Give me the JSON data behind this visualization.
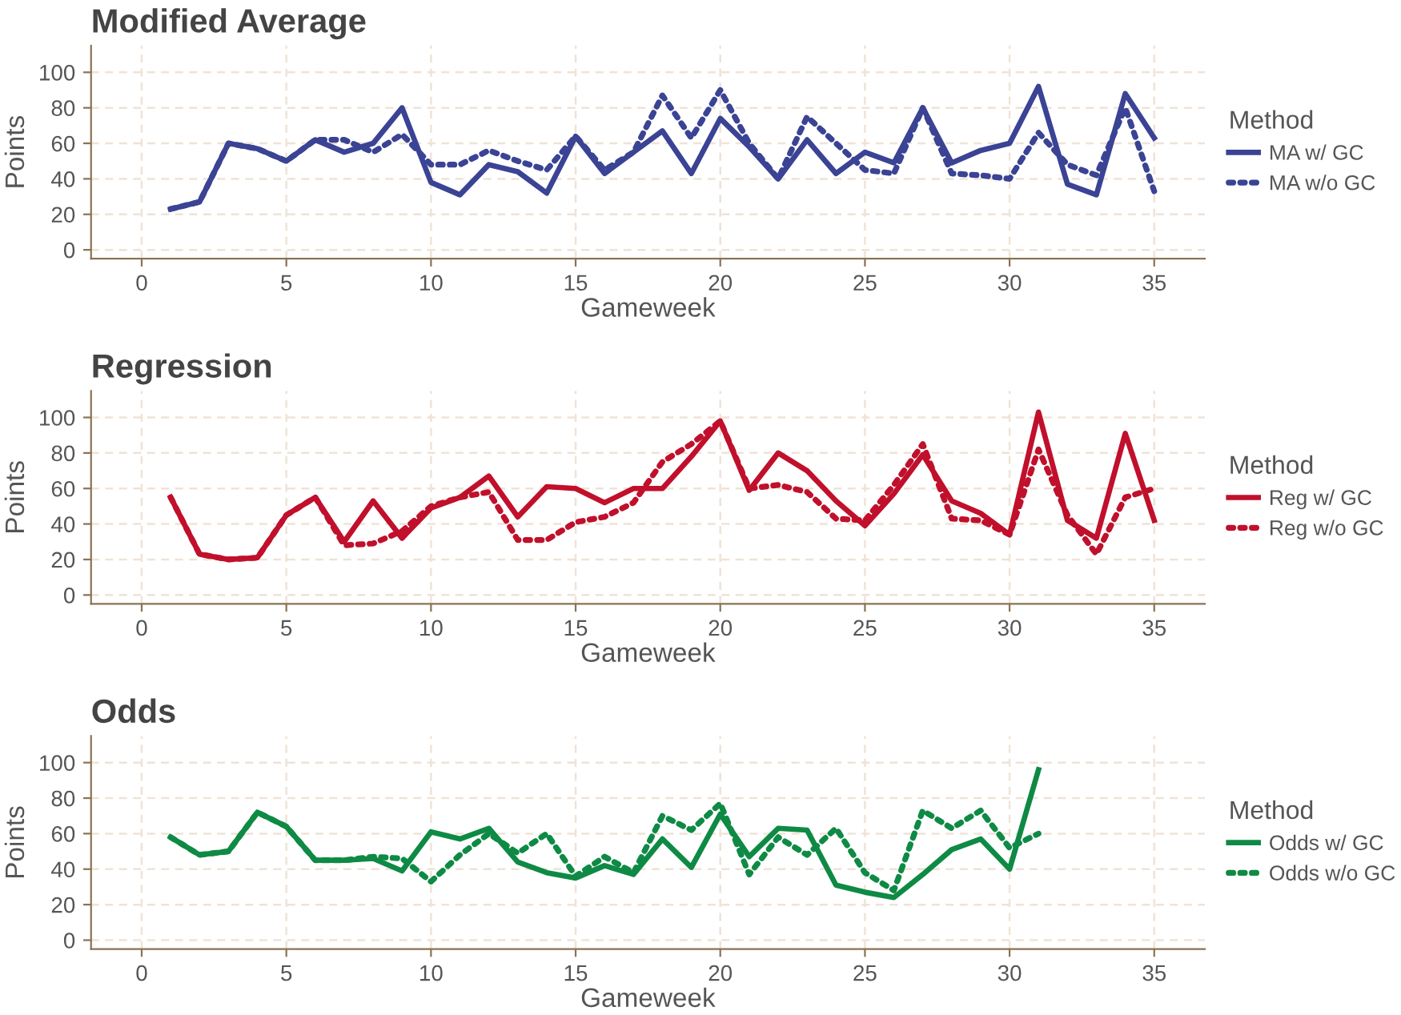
{
  "chart_data": [
    {
      "type": "line",
      "title": "Modified Average",
      "xlabel": "Gameweek",
      "ylabel": "Points",
      "legend_title": "Method",
      "legend": "right",
      "grid": true,
      "x": [
        1,
        2,
        3,
        4,
        5,
        6,
        7,
        8,
        9,
        10,
        11,
        12,
        13,
        14,
        15,
        16,
        17,
        18,
        19,
        20,
        21,
        22,
        23,
        24,
        25,
        26,
        27,
        28,
        29,
        30,
        31,
        32,
        33,
        34,
        35
      ],
      "xlim": [
        -1.75,
        36.75
      ],
      "ylim": [
        -5,
        115
      ],
      "xticks": [
        0,
        5,
        10,
        15,
        20,
        25,
        30,
        35
      ],
      "yticks": [
        0,
        20,
        40,
        60,
        80,
        100
      ],
      "series": [
        {
          "name": "MA w/ GC",
          "color": "#3a4394",
          "line_style": "solid",
          "values": [
            23,
            27,
            60,
            57,
            50,
            62,
            55,
            60,
            80,
            38,
            31,
            48,
            44,
            32,
            64,
            43,
            55,
            67,
            43,
            74,
            58,
            40,
            62,
            43,
            55,
            49,
            80,
            49,
            56,
            60,
            92,
            37,
            31,
            88,
            63
          ]
        },
        {
          "name": "MA w/o GC",
          "color": "#3a4394",
          "line_style": "dotted",
          "values": [
            23,
            27,
            60,
            57,
            50,
            62,
            62,
            55,
            65,
            48,
            48,
            56,
            50,
            45,
            64,
            45,
            55,
            87,
            63,
            90,
            60,
            40,
            75,
            60,
            45,
            43,
            80,
            43,
            42,
            40,
            66,
            48,
            42,
            80,
            33
          ]
        }
      ]
    },
    {
      "type": "line",
      "title": "Regression",
      "xlabel": "Gameweek",
      "ylabel": "Points",
      "legend_title": "Method",
      "legend": "right",
      "grid": true,
      "x": [
        1,
        2,
        3,
        4,
        5,
        6,
        7,
        8,
        9,
        10,
        11,
        12,
        13,
        14,
        15,
        16,
        17,
        18,
        19,
        20,
        21,
        22,
        23,
        24,
        25,
        26,
        27,
        28,
        29,
        30,
        31,
        32,
        33,
        34,
        35
      ],
      "xlim": [
        -1.75,
        36.75
      ],
      "ylim": [
        -5,
        115
      ],
      "xticks": [
        0,
        5,
        10,
        15,
        20,
        25,
        30,
        35
      ],
      "yticks": [
        0,
        20,
        40,
        60,
        80,
        100
      ],
      "series": [
        {
          "name": "Reg w/ GC",
          "color": "#c0102c",
          "line_style": "solid",
          "values": [
            55,
            23,
            20,
            21,
            45,
            55,
            30,
            53,
            32,
            49,
            55,
            67,
            44,
            61,
            60,
            52,
            60,
            60,
            78,
            98,
            59,
            80,
            70,
            53,
            39,
            57,
            79,
            53,
            46,
            34,
            103,
            42,
            32,
            91,
            42
          ]
        },
        {
          "name": "Reg w/o GC",
          "color": "#c0102c",
          "line_style": "dotted",
          "values": [
            55,
            23,
            20,
            21,
            45,
            55,
            28,
            29,
            36,
            50,
            55,
            58,
            31,
            31,
            41,
            44,
            52,
            75,
            85,
            98,
            60,
            62,
            58,
            43,
            42,
            62,
            85,
            43,
            42,
            34,
            82,
            45,
            23,
            55,
            60
          ]
        }
      ]
    },
    {
      "type": "line",
      "title": "Odds",
      "xlabel": "Gameweek",
      "ylabel": "Points",
      "legend_title": "Method",
      "legend": "right",
      "grid": true,
      "x": [
        1,
        2,
        3,
        4,
        5,
        6,
        7,
        8,
        9,
        10,
        11,
        12,
        13,
        14,
        15,
        16,
        17,
        18,
        19,
        20,
        21,
        22,
        23,
        24,
        25,
        26,
        27,
        28,
        29,
        30,
        31
      ],
      "xlim": [
        -1.75,
        36.75
      ],
      "ylim": [
        -5,
        115
      ],
      "xticks": [
        0,
        5,
        10,
        15,
        20,
        25,
        30,
        35
      ],
      "yticks": [
        0,
        20,
        40,
        60,
        80,
        100
      ],
      "series": [
        {
          "name": "Odds w/ GC",
          "color": "#0e8a45",
          "line_style": "solid",
          "values": [
            58,
            48,
            50,
            72,
            64,
            45,
            45,
            46,
            39,
            61,
            57,
            63,
            44,
            38,
            35,
            42,
            37,
            57,
            41,
            71,
            47,
            63,
            62,
            31,
            27,
            24,
            37,
            51,
            57,
            40,
            96
          ]
        },
        {
          "name": "Odds w/o GC",
          "color": "#0e8a45",
          "line_style": "dotted",
          "values": [
            58,
            48,
            50,
            72,
            64,
            45,
            45,
            47,
            46,
            33,
            48,
            60,
            49,
            60,
            36,
            47,
            38,
            70,
            62,
            77,
            37,
            58,
            48,
            63,
            38,
            28,
            73,
            63,
            73,
            52,
            60
          ]
        }
      ]
    }
  ]
}
